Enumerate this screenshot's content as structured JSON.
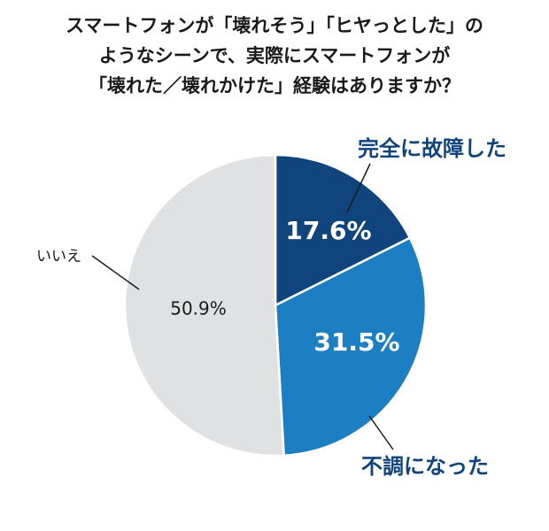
{
  "title_lines": [
    "スマートフォンが「壊れそう」「ヒヤっとした」の",
    "ようなシーンで、実際にスマートフォンが",
    "「壊れた／壊れかけた」経験はありますか？"
  ],
  "chart_data": {
    "type": "pie",
    "title": "スマートフォンが「壊れそう」「ヒヤっとした」のようなシーンで、実際にスマートフォンが「壊れた／壊れかけた」経験はありますか？",
    "unit": "%",
    "start": "12 o'clock",
    "direction": "clockwise",
    "slices": [
      {
        "label": "完全に故障した",
        "value": 17.6,
        "value_label": "17.6%",
        "color": "#10447d",
        "label_color": "#10447d",
        "value_color": "#ffffff"
      },
      {
        "label": "不調になった",
        "value": 31.5,
        "value_label": "31.5%",
        "color": "#1d7fc3",
        "label_color": "#10447d",
        "value_color": "#ffffff"
      },
      {
        "label": "いいえ",
        "value": 50.9,
        "value_label": "50.9%",
        "color": "#e0e1e2",
        "label_color": "#1a1a1a",
        "value_color": "#1a1a1a"
      }
    ]
  }
}
